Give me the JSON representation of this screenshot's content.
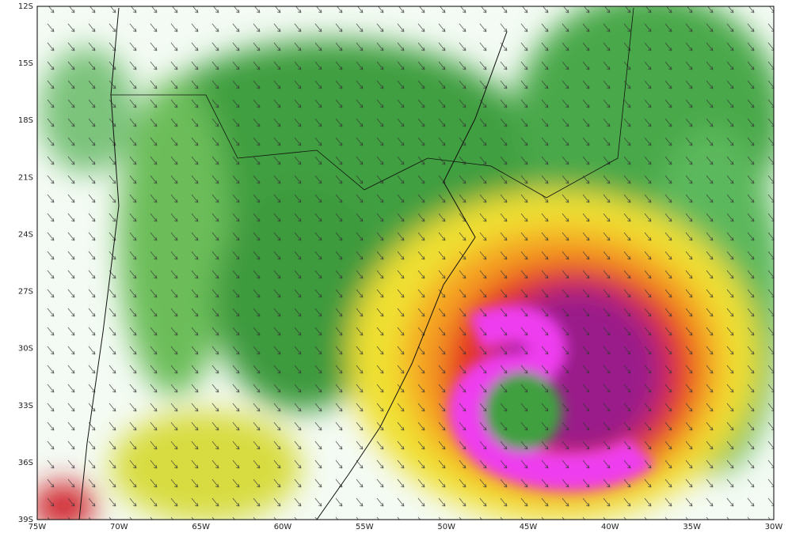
{
  "map": {
    "lat_labels": [
      "12S",
      "15S",
      "18S",
      "21S",
      "24S",
      "27S",
      "30S",
      "33S",
      "36S",
      "39S"
    ],
    "lon_labels": [
      "75W",
      "70W",
      "65W",
      "60W",
      "55W",
      "50W",
      "45W",
      "40W",
      "35W",
      "30W"
    ]
  }
}
